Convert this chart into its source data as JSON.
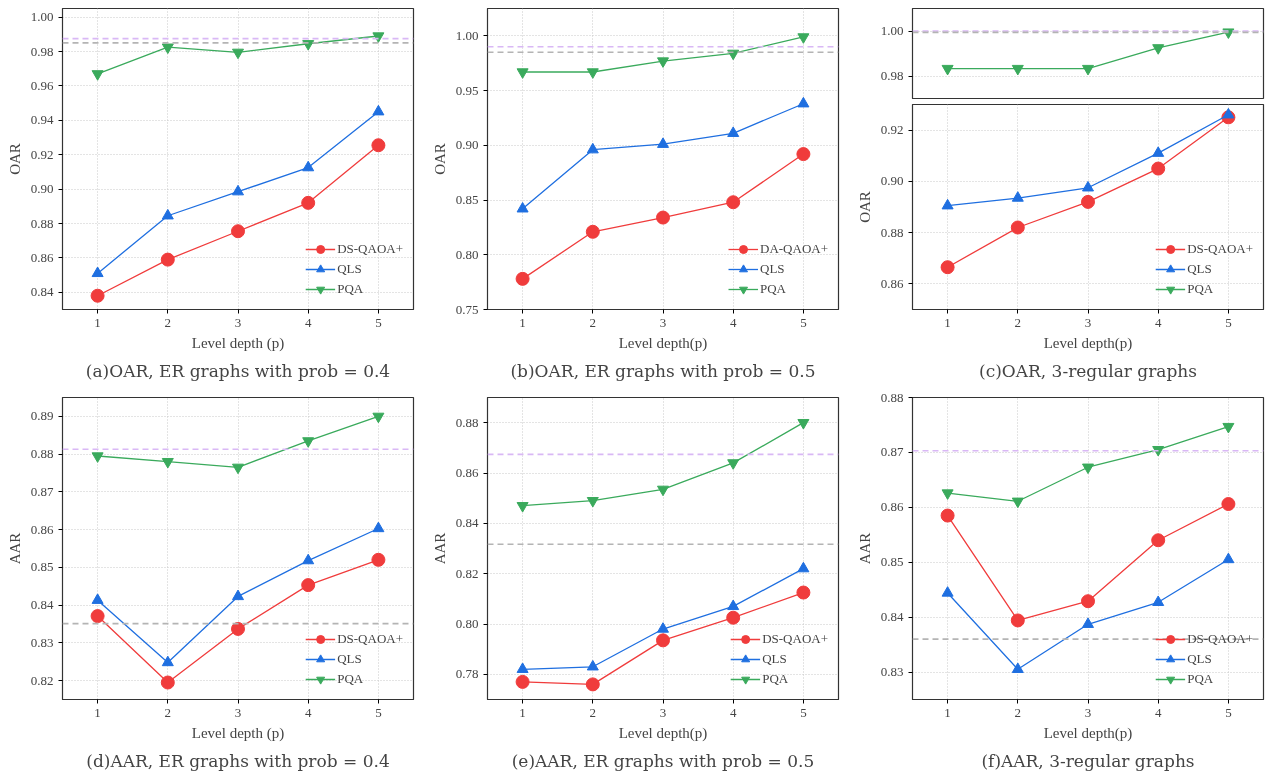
{
  "chart_data": [
    {
      "type": "line",
      "title": "(a)OAR, ER graphs with prob = 0.4",
      "xlabel": "Level depth (p)",
      "ylabel": "OAR",
      "x": [
        1,
        2,
        3,
        4,
        5
      ],
      "xlim": [
        0.5,
        5.5
      ],
      "xticks": [
        1,
        2,
        3,
        4,
        5
      ],
      "ylim": [
        0.83,
        1.005
      ],
      "yticks": [
        0.84,
        0.86,
        0.88,
        {
          "value": 0.9,
          "label": "0.90"
        },
        0.92,
        0.94,
        0.96,
        0.98,
        {
          "value": 1.0,
          "label": "1.00"
        }
      ],
      "grid": true,
      "legend": "bottom right",
      "series": [
        {
          "name": "DS-QAOA+",
          "color": "#f03c3c",
          "marker": "circle",
          "values": [
            0.838,
            0.859,
            0.8755,
            0.892,
            0.9255
          ]
        },
        {
          "name": "QLS",
          "color": "#1f6fe0",
          "marker": "triangle",
          "values": [
            0.851,
            0.8845,
            0.8985,
            0.9125,
            0.945
          ]
        },
        {
          "name": "PQA",
          "color": "#3aaa5c",
          "marker": "triangle-down",
          "values": [
            0.967,
            0.9825,
            0.9795,
            0.9845,
            0.989
          ]
        }
      ],
      "ref_lines": [
        {
          "axis": "y",
          "value": 0.9875,
          "color": "#d9b8f5",
          "line_style": "dashed"
        },
        {
          "axis": "y",
          "value": 0.985,
          "color": "#b4b4b4",
          "line_style": "dashed"
        }
      ]
    },
    {
      "type": "line",
      "title": "(b)OAR, ER graphs with prob = 0.5",
      "xlabel": "Level depth(p)",
      "ylabel": "OAR",
      "x": [
        1,
        2,
        3,
        4,
        5
      ],
      "xlim": [
        0.5,
        5.5
      ],
      "xticks": [
        1,
        2,
        3,
        4,
        5
      ],
      "ylim": [
        0.75,
        1.025
      ],
      "yticks": [
        0.75,
        {
          "value": 0.8,
          "label": "0.80"
        },
        0.85,
        {
          "value": 0.9,
          "label": "0.90"
        },
        0.95,
        {
          "value": 1.0,
          "label": "1.00"
        }
      ],
      "grid": true,
      "legend": "bottom right",
      "series": [
        {
          "name": "DA-QAOA+",
          "color": "#f03c3c",
          "marker": "circle",
          "values": [
            0.778,
            0.821,
            0.834,
            0.848,
            0.892
          ]
        },
        {
          "name": "QLS",
          "color": "#1f6fe0",
          "marker": "triangle",
          "values": [
            0.842,
            0.896,
            0.901,
            0.911,
            0.938
          ]
        },
        {
          "name": "PQA",
          "color": "#3aaa5c",
          "marker": "triangle-down",
          "values": [
            0.967,
            0.967,
            0.977,
            0.984,
            0.999
          ]
        }
      ],
      "ref_lines": [
        {
          "axis": "y",
          "value": 0.99,
          "color": "#d9b8f5",
          "line_style": "dashed"
        },
        {
          "axis": "y",
          "value": 0.985,
          "color": "#b4b4b4",
          "line_style": "dashed"
        }
      ]
    },
    {
      "type": "line",
      "x": [
        1,
        2,
        3,
        4,
        5
      ],
      "xlim": [
        0.5,
        5.5
      ],
      "ylim": [
        0.97,
        1.01
      ],
      "yticks": [
        0.98,
        {
          "value": 1.0,
          "label": "1.00"
        }
      ],
      "grid": true,
      "tick_labels": "y",
      "series": [
        {
          "color": "#3aaa5c",
          "marker": "triangle-down",
          "values": [
            0.9833,
            0.9833,
            0.9833,
            0.9925,
            0.9995
          ]
        }
      ],
      "ref_lines": [
        {
          "axis": "y",
          "value": 1.0,
          "color": "#d9b8f5",
          "line_style": "dashed"
        },
        {
          "axis": "y",
          "value": 0.9994,
          "color": "#b4b4b4",
          "line_style": "dashed"
        }
      ]
    },
    {
      "type": "line",
      "title": "(c)OAR, 3-regular graphs",
      "xlabel": "Level depth(p)",
      "ylabel": "OAR",
      "x": [
        1,
        2,
        3,
        4,
        5
      ],
      "xlim": [
        0.5,
        5.5
      ],
      "xticks": [
        1,
        2,
        3,
        4,
        5
      ],
      "ylim": [
        0.85,
        0.93
      ],
      "yticks": [
        0.86,
        0.88,
        {
          "value": 0.9,
          "label": "0.90"
        },
        0.92
      ],
      "grid": true,
      "legend": "bottom right",
      "series": [
        {
          "name": "DS-QAOA+",
          "color": "#f03c3c",
          "marker": "circle",
          "values": [
            0.8665,
            0.882,
            0.892,
            0.905,
            0.925
          ]
        },
        {
          "name": "QLS",
          "color": "#1f6fe0",
          "marker": "triangle",
          "values": [
            0.8905,
            0.8935,
            0.8975,
            0.911,
            0.926
          ]
        },
        {
          "name": "PQA",
          "color": "#3aaa5c",
          "marker": "triangle-down",
          "values": [
            null,
            null,
            null,
            null,
            null
          ]
        }
      ]
    },
    {
      "type": "line",
      "title": "(d)AAR, ER graphs with prob = 0.4",
      "xlabel": "Level depth (p)",
      "ylabel": "AAR",
      "x": [
        1,
        2,
        3,
        4,
        5
      ],
      "xlim": [
        0.5,
        5.5
      ],
      "xticks": [
        1,
        2,
        3,
        4,
        5
      ],
      "ylim": [
        0.815,
        0.895
      ],
      "yticks": [
        0.82,
        0.83,
        0.84,
        0.85,
        0.86,
        0.87,
        0.88,
        0.89
      ],
      "grid": true,
      "legend": "bottom right",
      "series": [
        {
          "name": "DS-QAOA+",
          "color": "#f03c3c",
          "marker": "circle",
          "values": [
            0.8371,
            0.8195,
            0.8337,
            0.8453,
            0.852
          ]
        },
        {
          "name": "QLS",
          "color": "#1f6fe0",
          "marker": "triangle",
          "values": [
            0.8413,
            0.8248,
            0.8423,
            0.8518,
            0.8603
          ]
        },
        {
          "name": "PQA",
          "color": "#3aaa5c",
          "marker": "triangle-down",
          "values": [
            0.8795,
            0.878,
            0.8765,
            0.8835,
            0.89
          ]
        }
      ],
      "ref_lines": [
        {
          "axis": "y",
          "value": 0.8813,
          "color": "#d9b8f5",
          "line_style": "dashed"
        },
        {
          "axis": "y",
          "value": 0.8351,
          "color": "#b4b4b4",
          "line_style": "dashed"
        }
      ]
    },
    {
      "type": "line",
      "title": "(e)AAR, ER graphs with prob = 0.5",
      "xlabel": "Level depth(p)",
      "ylabel": "AAR",
      "x": [
        1,
        2,
        3,
        4,
        5
      ],
      "xlim": [
        0.5,
        5.5
      ],
      "xticks": [
        1,
        2,
        3,
        4,
        5
      ],
      "ylim": [
        0.77,
        0.89
      ],
      "yticks": [
        0.78,
        {
          "value": 0.8,
          "label": "0.80"
        },
        0.82,
        0.84,
        0.86,
        0.88
      ],
      "grid": true,
      "legend": "bottom right",
      "series": [
        {
          "name": "DS-QAOA+",
          "color": "#f03c3c",
          "marker": "circle",
          "values": [
            0.777,
            0.776,
            0.7935,
            0.8025,
            0.8125
          ]
        },
        {
          "name": "QLS",
          "color": "#1f6fe0",
          "marker": "triangle",
          "values": [
            0.782,
            0.783,
            0.798,
            0.807,
            0.822
          ]
        },
        {
          "name": "PQA",
          "color": "#3aaa5c",
          "marker": "triangle-down",
          "values": [
            0.847,
            0.849,
            0.8535,
            0.864,
            0.88
          ]
        }
      ],
      "ref_lines": [
        {
          "axis": "y",
          "value": 0.8674,
          "color": "#d9b8f5",
          "line_style": "dashed"
        },
        {
          "axis": "y",
          "value": 0.8317,
          "color": "#b4b4b4",
          "line_style": "dashed"
        }
      ]
    },
    {
      "type": "line",
      "title": "(f)AAR, 3-regular graphs",
      "xlabel": "Level depth(p)",
      "ylabel": "AAR",
      "x": [
        1,
        2,
        3,
        4,
        5
      ],
      "xlim": [
        0.5,
        5.5
      ],
      "xticks": [
        1,
        2,
        3,
        4,
        5
      ],
      "ylim": [
        0.825,
        0.88
      ],
      "yticks": [
        0.83,
        0.84,
        0.85,
        0.86,
        0.87,
        0.88
      ],
      "grid": true,
      "legend": "bottom right",
      "series": [
        {
          "name": "DS-QAOA+",
          "color": "#f03c3c",
          "marker": "circle",
          "values": [
            0.8585,
            0.8394,
            0.8429,
            0.854,
            0.8606
          ]
        },
        {
          "name": "QLS",
          "color": "#1f6fe0",
          "marker": "triangle",
          "values": [
            0.8444,
            0.8305,
            0.8387,
            0.8427,
            0.8505
          ]
        },
        {
          "name": "PQA",
          "color": "#3aaa5c",
          "marker": "triangle-down",
          "values": [
            0.8626,
            0.8611,
            0.8673,
            0.8705,
            0.8747
          ]
        }
      ],
      "ref_lines": [
        {
          "axis": "y",
          "value": 0.8703,
          "color": "#d9b8f5",
          "line_style": "dashed"
        },
        {
          "axis": "y",
          "value": 0.836,
          "color": "#b4b4b4",
          "line_style": "dashed"
        }
      ]
    }
  ]
}
